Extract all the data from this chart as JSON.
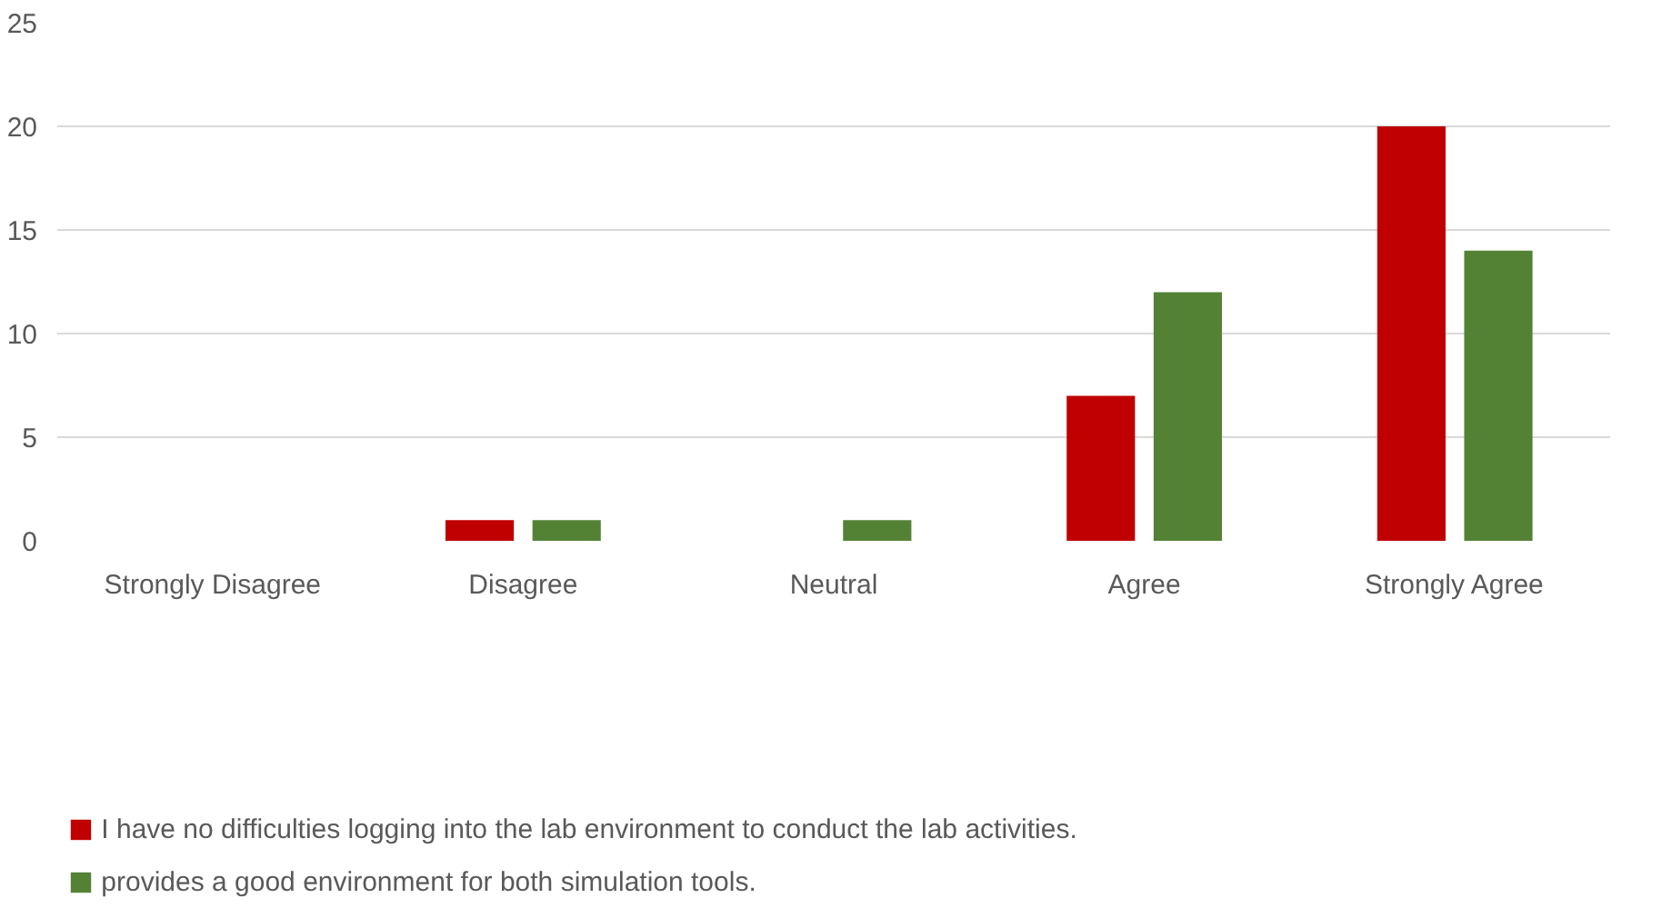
{
  "chart_data": {
    "type": "bar",
    "categories": [
      "Strongly Disagree",
      "Disagree",
      "Neutral",
      "Agree",
      "Strongly Agree"
    ],
    "series": [
      {
        "name": "I have no difficulties logging into the lab environment to conduct the lab activities.",
        "color": "#c00000",
        "values": [
          0,
          1,
          0,
          7,
          20
        ]
      },
      {
        "name": "provides a good environment for both simulation tools.",
        "color": "#548235",
        "values": [
          0,
          1,
          1,
          12,
          14
        ]
      }
    ],
    "ylim": [
      0,
      25
    ],
    "yticks": [
      0,
      5,
      10,
      15,
      20,
      25
    ],
    "grid": "y",
    "legend": "bottom"
  }
}
